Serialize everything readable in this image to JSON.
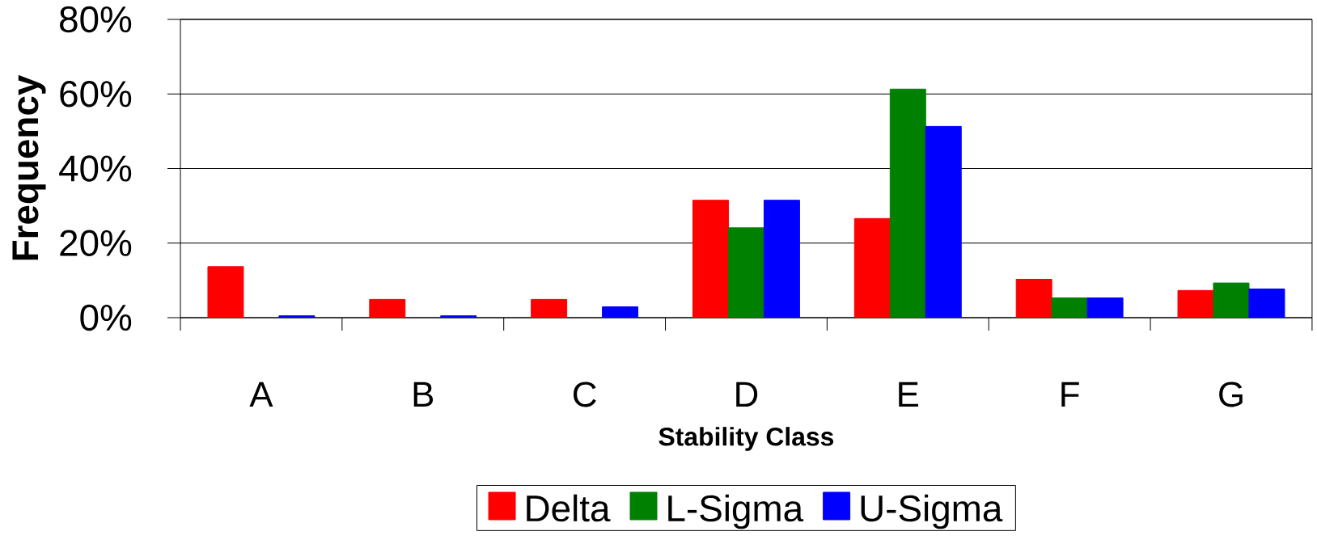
{
  "chart_data": {
    "type": "bar",
    "xlabel": "Stability Class",
    "ylabel": "Frequency",
    "categories": [
      "A",
      "B",
      "C",
      "D",
      "E",
      "F",
      "G"
    ],
    "series": [
      {
        "name": "Delta",
        "color": "#ff0000",
        "values": [
          13.7,
          4.9,
          4.9,
          31.5,
          26.6,
          10.3,
          7.3
        ]
      },
      {
        "name": "L-Sigma",
        "color": "#008000",
        "values": [
          null,
          null,
          null,
          24.1,
          61.3,
          5.3,
          9.3
        ]
      },
      {
        "name": "U-Sigma",
        "color": "#0000ff",
        "values": [
          0.5,
          0.5,
          2.9,
          31.5,
          51.3,
          5.3,
          7.7
        ]
      }
    ],
    "ylim": [
      0,
      80
    ],
    "yticks": [
      {
        "value": 0,
        "label": "0%"
      },
      {
        "value": 20,
        "label": "20%"
      },
      {
        "value": 40,
        "label": "40%"
      },
      {
        "value": 60,
        "label": "60%"
      },
      {
        "value": 80,
        "label": "80%"
      }
    ],
    "grid": "y",
    "legend": "bottom"
  }
}
